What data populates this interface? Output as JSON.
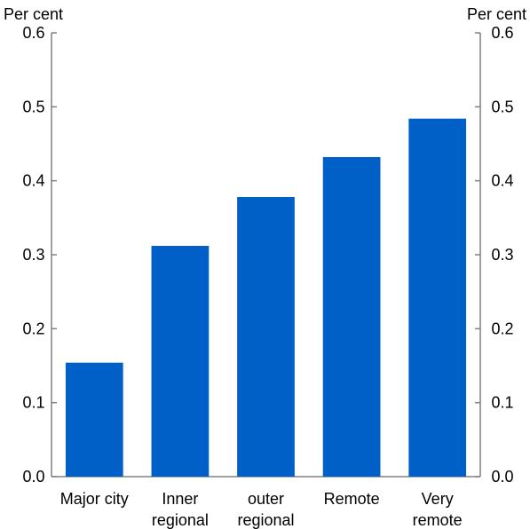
{
  "chart_data": {
    "type": "bar",
    "categories": [
      [
        "Major city"
      ],
      [
        "Inner",
        "regional"
      ],
      [
        "outer",
        "regional"
      ],
      [
        "Remote"
      ],
      [
        "Very",
        "remote"
      ]
    ],
    "values": [
      0.154,
      0.312,
      0.378,
      0.432,
      0.484
    ],
    "y_unit_left": "Per cent",
    "y_unit_right": "Per cent",
    "yticks": [
      "0.0",
      "0.1",
      "0.2",
      "0.3",
      "0.4",
      "0.5",
      "0.6"
    ],
    "ylim": [
      0,
      0.6
    ],
    "grid": false,
    "bar_color": "#0060c8",
    "axis_color": "#808080"
  }
}
